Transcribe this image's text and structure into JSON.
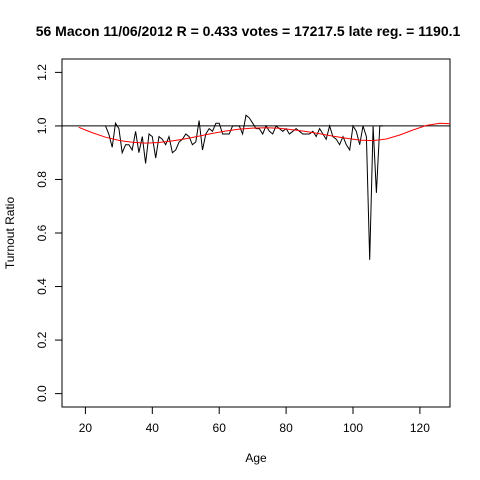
{
  "chart_data": {
    "type": "line",
    "title": "56 Macon 11/06/2012 R = 0.433 votes = 17217.5 late reg. = 1190.1",
    "xlabel": "Age",
    "ylabel": "Turnout Ratio",
    "xlim": [
      13,
      129
    ],
    "ylim": [
      -0.05,
      1.25
    ],
    "xticks": [
      20,
      40,
      60,
      80,
      100,
      120
    ],
    "yticks": [
      0.0,
      0.2,
      0.4,
      0.6,
      0.8,
      1.0,
      1.2
    ],
    "xtick_labels": [
      "20",
      "40",
      "60",
      "80",
      "100",
      "120"
    ],
    "ytick_labels": [
      "0.0",
      "0.2",
      "0.4",
      "0.6",
      "0.8",
      "1.0",
      "1.2"
    ],
    "reference_line": {
      "y": 1.0,
      "color": "#000000"
    },
    "grid": false,
    "series": [
      {
        "color": "#000000",
        "x": [
          26,
          27,
          28,
          29,
          30,
          31,
          32,
          33,
          34,
          35,
          36,
          37,
          38,
          39,
          40,
          41,
          42,
          43,
          44,
          45,
          46,
          47,
          48,
          49,
          50,
          51,
          52,
          53,
          54,
          55,
          56,
          57,
          58,
          59,
          60,
          61,
          62,
          63,
          64,
          65,
          66,
          67,
          68,
          69,
          70,
          71,
          72,
          73,
          74,
          75,
          76,
          77,
          78,
          79,
          80,
          81,
          82,
          83,
          84,
          85,
          86,
          87,
          88,
          89,
          90,
          91,
          92,
          93,
          94,
          95,
          96,
          97,
          98,
          99,
          100,
          101,
          102,
          103,
          104,
          105,
          106,
          107,
          108,
          109
        ],
        "y": [
          1.0,
          0.97,
          0.92,
          1.01,
          0.99,
          0.9,
          0.93,
          0.93,
          0.91,
          0.98,
          0.9,
          0.96,
          0.86,
          0.97,
          0.96,
          0.88,
          0.96,
          0.95,
          0.93,
          0.96,
          0.9,
          0.91,
          0.94,
          0.95,
          0.97,
          0.96,
          0.93,
          0.94,
          1.02,
          0.91,
          0.97,
          0.99,
          0.98,
          1.01,
          1.01,
          0.97,
          0.97,
          0.97,
          1.0,
          1.0,
          1.0,
          0.97,
          1.04,
          1.03,
          1.01,
          0.99,
          0.99,
          0.97,
          1.0,
          0.98,
          0.97,
          1.0,
          0.99,
          0.98,
          0.99,
          0.97,
          0.98,
          0.99,
          0.98,
          0.97,
          0.97,
          0.97,
          0.98,
          0.96,
          0.99,
          0.97,
          0.95,
          1.0,
          0.96,
          0.95,
          0.93,
          0.96,
          0.93,
          0.91,
          1.0,
          0.98,
          0.93,
          1.0,
          0.96,
          0.5,
          1.0,
          0.75,
          1.0,
          1.0
        ]
      },
      {
        "color": "#ff0000",
        "x": [
          18,
          22,
          26,
          30,
          34,
          38,
          42,
          46,
          50,
          54,
          58,
          62,
          66,
          70,
          74,
          78,
          82,
          86,
          90,
          94,
          98,
          102,
          106,
          110,
          114,
          118,
          122,
          126,
          129
        ],
        "y": [
          0.995,
          0.975,
          0.958,
          0.946,
          0.939,
          0.936,
          0.938,
          0.944,
          0.952,
          0.962,
          0.972,
          0.981,
          0.988,
          0.992,
          0.993,
          0.991,
          0.986,
          0.979,
          0.971,
          0.962,
          0.954,
          0.947,
          0.945,
          0.951,
          0.966,
          0.985,
          1.002,
          1.01,
          1.008
        ]
      }
    ]
  }
}
